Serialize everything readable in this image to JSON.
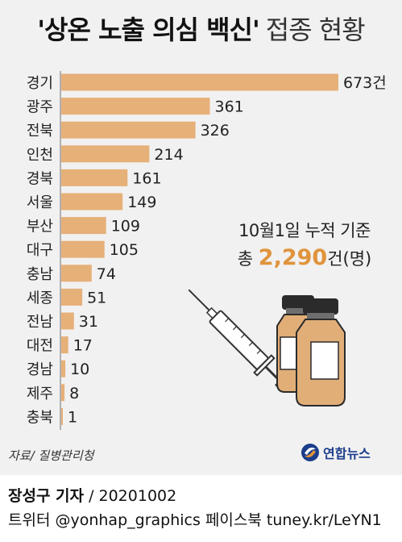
{
  "title": {
    "main": "'상온 노출 의심 백신'",
    "sub": "접종 현황"
  },
  "chart_data": {
    "type": "bar",
    "orientation": "horizontal",
    "categories": [
      "경기",
      "광주",
      "전북",
      "인천",
      "경북",
      "서울",
      "부산",
      "대구",
      "충남",
      "세종",
      "전남",
      "대전",
      "경남",
      "제주",
      "충북"
    ],
    "values": [
      673,
      361,
      326,
      214,
      161,
      149,
      109,
      105,
      74,
      51,
      31,
      17,
      10,
      8,
      1
    ],
    "value_labels": [
      "673건",
      "361",
      "326",
      "214",
      "161",
      "149",
      "109",
      "105",
      "74",
      "51",
      "31",
      "17",
      "10",
      "8",
      "1"
    ],
    "bar_color": "#e6b079",
    "axis_color": "#9a9a9a",
    "grid": false,
    "legend": "none"
  },
  "note": {
    "date": "10월1일 누적 기준",
    "total_prefix": "총",
    "total_value": "2,290",
    "total_suffix": "건(명)"
  },
  "source": "자료/ 질병관리청",
  "logo": {
    "label": "연합뉴스",
    "icon": "yonhap-logo-icon"
  },
  "footer": {
    "reporter": "장성구 기자",
    "date": "/ 20201002",
    "sns": "트위터 @yonhap_graphics  페이스북 tuney.kr/LeYN1"
  },
  "colors": {
    "panel_background": "#f1f1f1",
    "accent": "#e0943c",
    "vial_body": "#e2ae78",
    "vial_cap": "#2b2b2b",
    "logo_blue": "#1c3d8c"
  },
  "illustration": {
    "icons": [
      "syringe-icon",
      "vaccine-vial-icon"
    ]
  }
}
